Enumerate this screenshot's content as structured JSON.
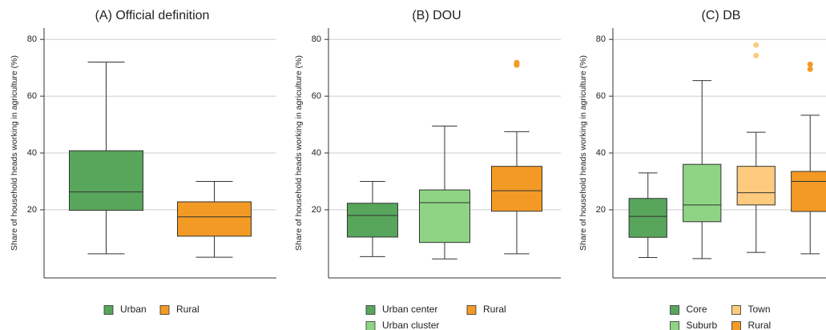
{
  "chart_data": [
    {
      "type": "box",
      "title": "(A) Official definition",
      "y_label": "Share of household heads working in agriculture (%)",
      "ylim": [
        -4,
        84
      ],
      "yticks": [
        20,
        40,
        60,
        80
      ],
      "grid": true,
      "series": [
        {
          "name": "Urban",
          "color": "#58a55c",
          "min": 4.5,
          "q1": 19.8,
          "median": 26.3,
          "q3": 40.8,
          "max": 72,
          "outliers": []
        },
        {
          "name": "Rural",
          "color": "#f39a25",
          "min": 3.3,
          "q1": 10.7,
          "median": 17.5,
          "q3": 22.8,
          "max": 30,
          "outliers": []
        }
      ]
    },
    {
      "type": "box",
      "title": "(B) DOU",
      "y_label": "Share of household heads working in agriculture (%)",
      "ylim": [
        -4,
        84
      ],
      "yticks": [
        20,
        40,
        60,
        80
      ],
      "grid": true,
      "series": [
        {
          "name": "Urban center",
          "color": "#58a55c",
          "min": 3.5,
          "q1": 10.4,
          "median": 18,
          "q3": 22.3,
          "max": 30,
          "outliers": []
        },
        {
          "name": "Urban cluster",
          "color": "#8fd484",
          "min": 2.7,
          "q1": 8.5,
          "median": 22.5,
          "q3": 27,
          "max": 49.5,
          "outliers": []
        },
        {
          "name": "Rural",
          "color": "#f39a25",
          "min": 4.5,
          "q1": 19.5,
          "median": 26.7,
          "q3": 35.3,
          "max": 47.5,
          "outliers": [
            71,
            71.8
          ]
        }
      ]
    },
    {
      "type": "box",
      "title": "(C) DB",
      "y_label": "Share of household heads working in agriculture (%)",
      "ylim": [
        -4,
        84
      ],
      "yticks": [
        20,
        40,
        60,
        80
      ],
      "grid": true,
      "series": [
        {
          "name": "Core",
          "color": "#58a55c",
          "min": 3.2,
          "q1": 10.3,
          "median": 17.7,
          "q3": 24,
          "max": 33,
          "outliers": []
        },
        {
          "name": "Suburb",
          "color": "#8fd484",
          "min": 2.8,
          "q1": 15.8,
          "median": 21.7,
          "q3": 36,
          "max": 65.5,
          "outliers": []
        },
        {
          "name": "Town",
          "color": "#fdcb7d",
          "min": 5,
          "q1": 21.7,
          "median": 26,
          "q3": 35.3,
          "max": 47.3,
          "outliers": [
            74.3,
            78
          ]
        },
        {
          "name": "Rural",
          "color": "#f39a25",
          "min": 4.5,
          "q1": 19.4,
          "median": 30,
          "q3": 33.5,
          "max": 53.3,
          "outliers": [
            69.5,
            71.2
          ]
        }
      ]
    }
  ]
}
